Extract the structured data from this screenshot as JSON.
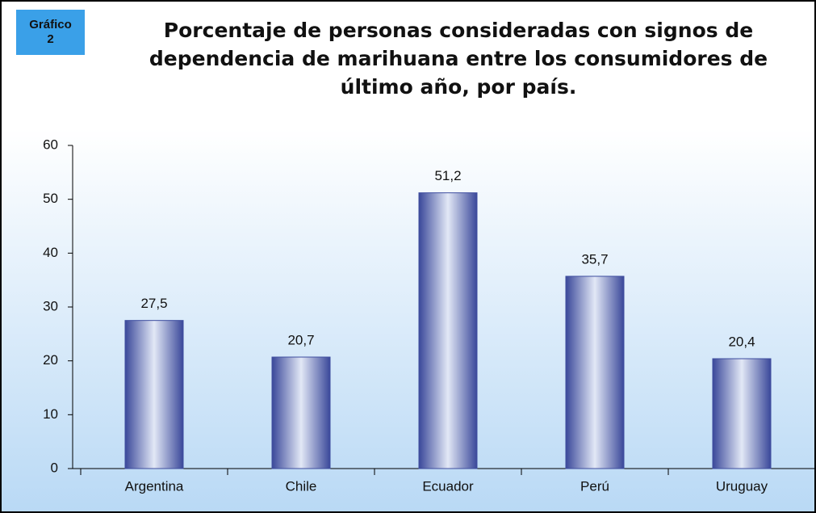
{
  "chart_data": {
    "type": "bar",
    "badge": {
      "text": "Gráfico",
      "number": "2"
    },
    "title": "Porcentaje de personas consideradas con signos de dependencia de marihuana entre los consumidores de último año, por país.",
    "categories": [
      "Argentina",
      "Chile",
      "Ecuador",
      "Perú",
      "Uruguay"
    ],
    "values": [
      27.5,
      20.7,
      51.2,
      35.7,
      20.4
    ],
    "value_labels": [
      "27,5",
      "20,7",
      "51,2",
      "35,7",
      "20,4"
    ],
    "color": "#3e4d9e",
    "ylim": [
      0,
      60
    ],
    "yticks": [
      0,
      10,
      20,
      30,
      40,
      50,
      60
    ],
    "grid": false
  }
}
